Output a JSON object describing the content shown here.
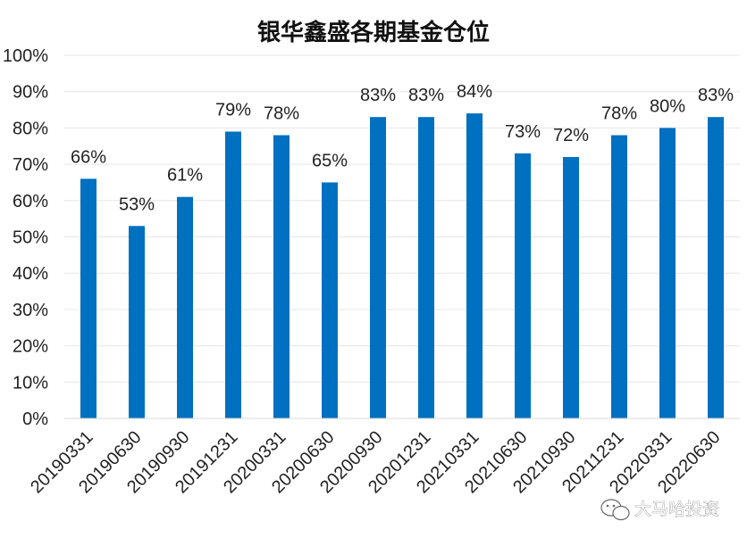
{
  "chart_data": {
    "type": "bar",
    "title": "银华鑫盛各期基金仓位",
    "categories": [
      "20190331",
      "20190630",
      "20190930",
      "20191231",
      "20200331",
      "20200630",
      "20200930",
      "20201231",
      "20210331",
      "20210630",
      "20210930",
      "20211231",
      "20220331",
      "20220630"
    ],
    "values": [
      66,
      53,
      61,
      79,
      78,
      65,
      83,
      83,
      84,
      73,
      72,
      78,
      80,
      83
    ],
    "data_labels": [
      "66%",
      "53%",
      "61%",
      "79%",
      "78%",
      "65%",
      "83%",
      "83%",
      "84%",
      "73%",
      "72%",
      "78%",
      "80%",
      "83%"
    ],
    "y_ticks": [
      "0%",
      "10%",
      "20%",
      "30%",
      "40%",
      "50%",
      "60%",
      "70%",
      "80%",
      "90%",
      "100%"
    ],
    "ylim": [
      0,
      100
    ],
    "grid": true,
    "bar_color": "#0070c0"
  },
  "watermark": {
    "text": "大马哈投资",
    "icon": "wechat-icon"
  }
}
